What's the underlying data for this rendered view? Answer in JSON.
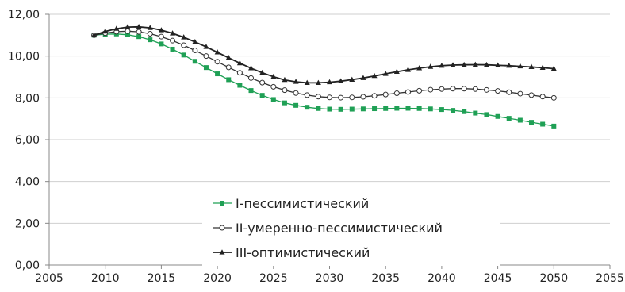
{
  "chart_data": {
    "type": "line",
    "xlim": [
      2005,
      2055
    ],
    "ylim": [
      0,
      12
    ],
    "x_ticks": [
      "2005",
      "2010",
      "2015",
      "2020",
      "2025",
      "2030",
      "2035",
      "2040",
      "2045",
      "2050",
      "2055"
    ],
    "y_ticks": [
      "0,00",
      "2,00",
      "4,00",
      "6,00",
      "8,00",
      "10,00",
      "12,00"
    ],
    "grid": "horizontal",
    "legend_position": "center",
    "x": [
      2009,
      2010,
      2011,
      2012,
      2013,
      2014,
      2015,
      2016,
      2017,
      2018,
      2019,
      2020,
      2021,
      2022,
      2023,
      2024,
      2025,
      2026,
      2027,
      2028,
      2029,
      2030,
      2031,
      2032,
      2033,
      2034,
      2035,
      2036,
      2037,
      2038,
      2039,
      2040,
      2041,
      2042,
      2043,
      2044,
      2045,
      2046,
      2047,
      2048,
      2049,
      2050
    ],
    "series": [
      {
        "name": "I-пессимистический",
        "color": "#1fa055",
        "marker": "square",
        "values": [
          11.0,
          11.05,
          11.06,
          11.02,
          10.93,
          10.78,
          10.58,
          10.33,
          10.05,
          9.75,
          9.45,
          9.15,
          8.87,
          8.6,
          8.35,
          8.12,
          7.92,
          7.76,
          7.64,
          7.55,
          7.49,
          7.46,
          7.45,
          7.46,
          7.47,
          7.48,
          7.49,
          7.5,
          7.5,
          7.49,
          7.47,
          7.44,
          7.4,
          7.34,
          7.27,
          7.2,
          7.11,
          7.02,
          6.93,
          6.83,
          6.74,
          6.65
        ]
      },
      {
        "name": "II-умеренно-пессимистический",
        "color": "#333333",
        "marker": "circle",
        "values": [
          11.0,
          11.1,
          11.17,
          11.19,
          11.16,
          11.07,
          10.93,
          10.74,
          10.52,
          10.27,
          10.0,
          9.73,
          9.46,
          9.2,
          8.95,
          8.73,
          8.53,
          8.37,
          8.23,
          8.13,
          8.06,
          8.02,
          8.01,
          8.02,
          8.05,
          8.1,
          8.16,
          8.22,
          8.28,
          8.34,
          8.39,
          8.42,
          8.44,
          8.44,
          8.42,
          8.38,
          8.33,
          8.27,
          8.2,
          8.13,
          8.06,
          8.0
        ]
      },
      {
        "name": "III-оптимистический",
        "color": "#222222",
        "marker": "triangle",
        "values": [
          11.0,
          11.18,
          11.31,
          11.39,
          11.4,
          11.35,
          11.24,
          11.09,
          10.9,
          10.68,
          10.44,
          10.18,
          9.92,
          9.66,
          9.42,
          9.2,
          9.01,
          8.86,
          8.77,
          8.72,
          8.72,
          8.75,
          8.8,
          8.87,
          8.95,
          9.05,
          9.15,
          9.25,
          9.34,
          9.42,
          9.49,
          9.54,
          9.57,
          9.58,
          9.59,
          9.58,
          9.56,
          9.54,
          9.51,
          9.48,
          9.44,
          9.4
        ]
      }
    ]
  }
}
